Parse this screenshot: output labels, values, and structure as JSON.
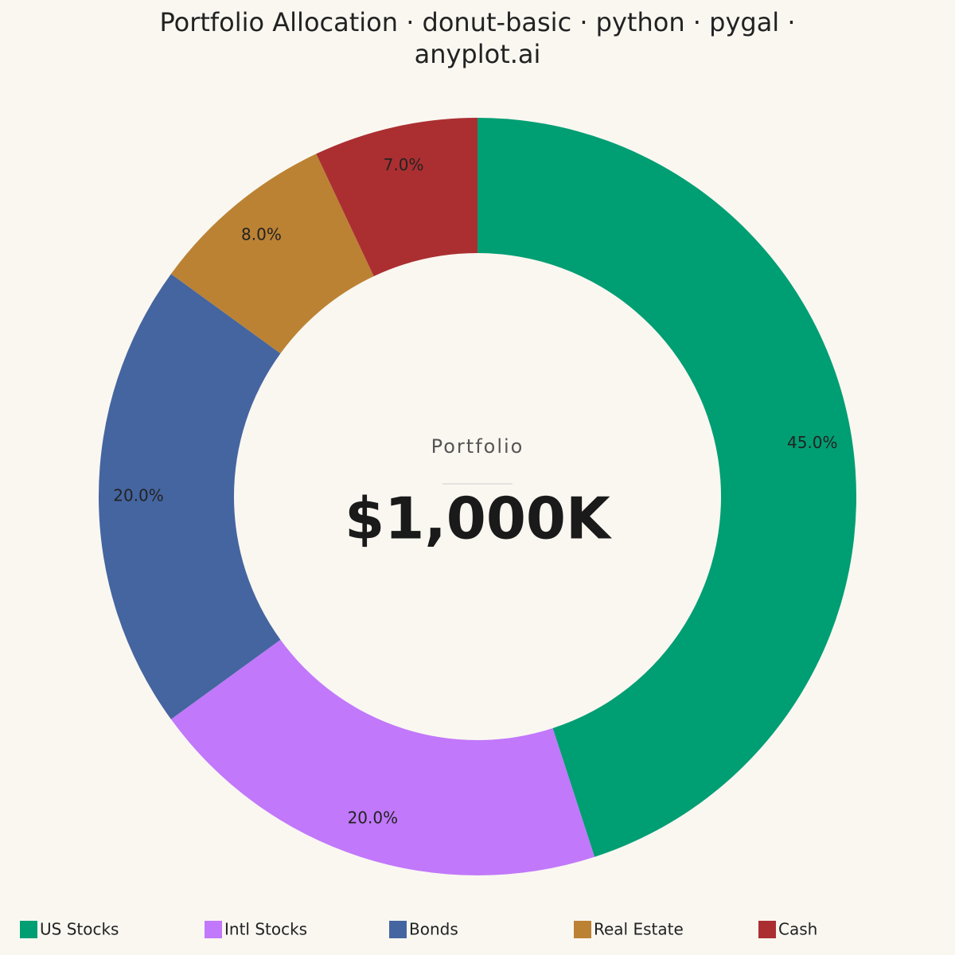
{
  "chart_data": {
    "type": "donut",
    "title": "Portfolio Allocation · donut-basic · python · pygal · anyplot.ai",
    "categories": [
      "US Stocks",
      "Intl Stocks",
      "Bonds",
      "Real Estate",
      "Cash"
    ],
    "values": [
      45,
      20,
      20,
      8,
      7
    ],
    "value_labels": [
      "45.0%",
      "20.0%",
      "20.0%",
      "8.0%",
      "7.0%"
    ],
    "colors": [
      "#009e73",
      "#c178fa",
      "#4565a0",
      "#bb8234",
      "#ab2f31"
    ],
    "center_label": "Portfolio",
    "center_value": "$1,000K",
    "legend": "bottom"
  }
}
